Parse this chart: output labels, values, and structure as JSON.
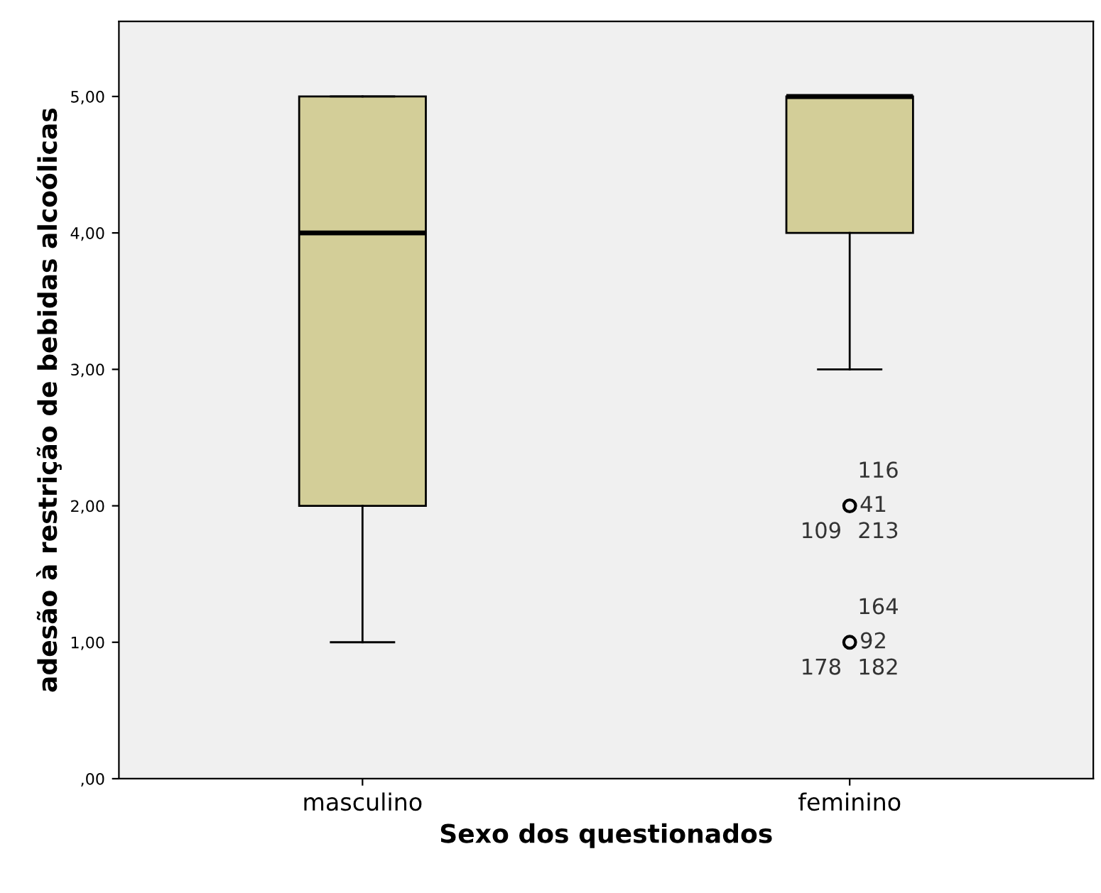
{
  "chart_data": {
    "type": "box",
    "xlabel": "Sexo dos questionados",
    "ylabel": "adesão à restrição de bebidas alcoólicas",
    "categories": [
      "masculino",
      "feminino"
    ],
    "boxes": [
      {
        "low": 1,
        "q1": 2,
        "median": 4,
        "q3": 5,
        "high": 5
      },
      {
        "low": 3,
        "q1": 4,
        "median": 5,
        "q3": 5,
        "high": 5,
        "outliers": [
          2,
          1
        ]
      }
    ],
    "color": "#d3ce98",
    "ylim": [
      0,
      5.55
    ],
    "yticks": [
      {
        "value": 0,
        "label": ",00"
      },
      {
        "value": 1,
        "label": "1,00"
      },
      {
        "value": 2,
        "label": "2,00"
      },
      {
        "value": 3,
        "label": "3,00"
      },
      {
        "value": 4,
        "label": "4,00"
      },
      {
        "value": 5,
        "label": "5,00"
      }
    ],
    "marker": "circle",
    "grid": false,
    "annotations": [
      "116",
      "41",
      "109",
      "213",
      "164",
      "92",
      "178",
      "182"
    ]
  }
}
